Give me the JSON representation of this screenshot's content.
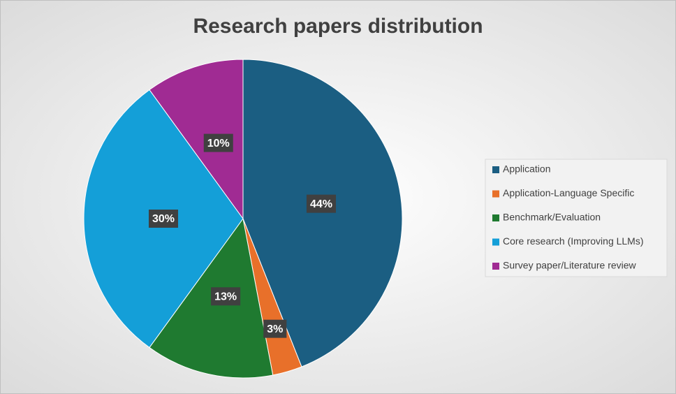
{
  "chart_data": {
    "type": "pie",
    "title": "Research papers distribution",
    "categories": [
      "Application",
      "Application-Language Specific",
      "Benchmark/Evaluation",
      "Core research (Improving LLMs)",
      "Survey paper/Literature review"
    ],
    "values": [
      44,
      3,
      13,
      30,
      10
    ],
    "value_labels": [
      "44%",
      "3%",
      "13%",
      "30%",
      "10%"
    ],
    "colors": [
      "#1b5e82",
      "#e8702a",
      "#1f7a30",
      "#149fd8",
      "#a02b93"
    ],
    "legend": "right"
  }
}
